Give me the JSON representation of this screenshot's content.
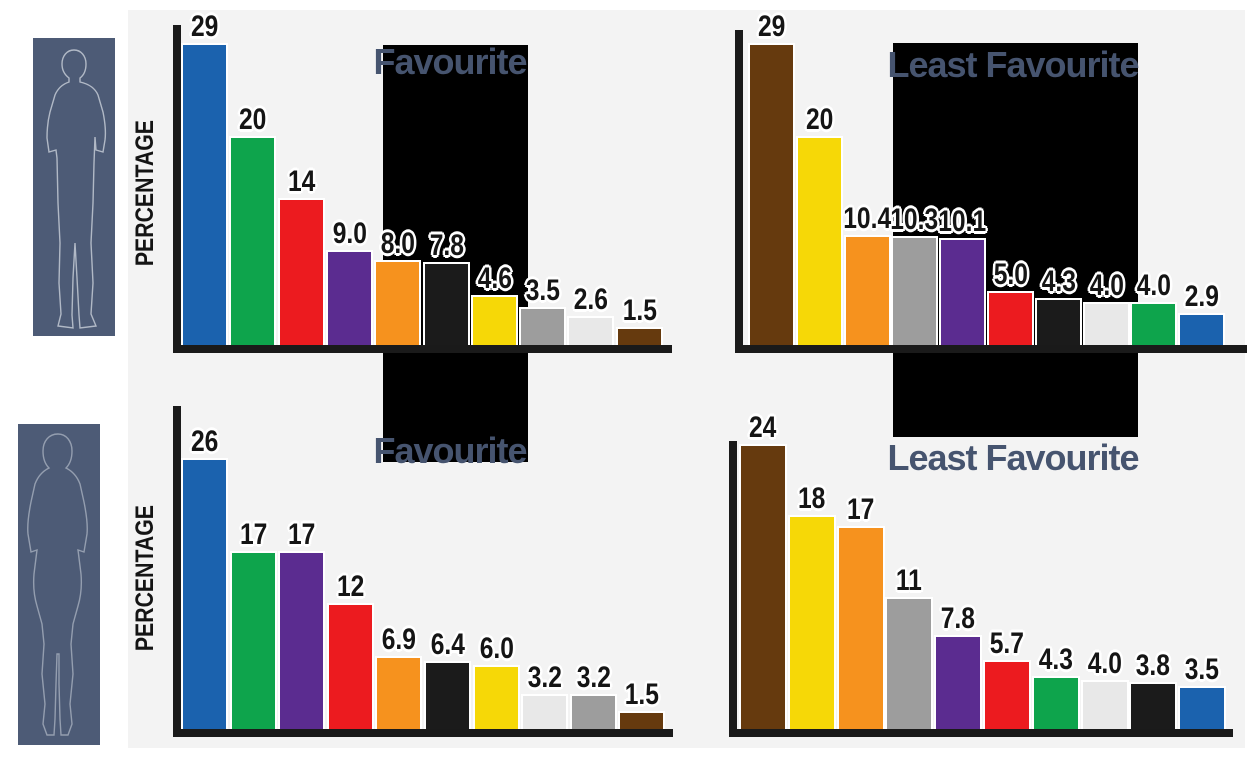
{
  "page": {
    "background_color": "#ffffff",
    "panel_color": "#f3f3f3",
    "overlay_color": "#000000",
    "title_color": "#46546f",
    "silhouette_color": "#4d5b76",
    "axis_color": "#1a1a1a"
  },
  "figures": {
    "top": "man-silhouette",
    "bottom": "woman-silhouette"
  },
  "color_palette": {
    "blue": "#1b62ae",
    "green": "#0ea44c",
    "red": "#ec1b1f",
    "purple": "#5b2c90",
    "orange": "#f6921e",
    "black": "#1b1b1b",
    "yellow": "#f6d807",
    "grey": "#9d9d9d",
    "white": "#e8e8e8",
    "brown": "#663a0e"
  },
  "chart_data": [
    {
      "type": "bar",
      "group": "men",
      "title": "Favourite",
      "ylabel": "PERCENTAGE",
      "ylim": [
        0,
        30
      ],
      "grid": false,
      "legend": "none",
      "categories": [
        "blue",
        "green",
        "red",
        "purple",
        "orange",
        "black",
        "yellow",
        "grey",
        "white",
        "brown"
      ],
      "values": [
        29,
        20,
        14,
        9.0,
        8.0,
        7.8,
        4.6,
        3.5,
        2.6,
        1.5
      ],
      "labels": [
        "29",
        "20",
        "14",
        "9.0",
        "8.0",
        "7.8",
        "4.6",
        "3.5",
        "2.6",
        "1.5"
      ],
      "bar_colors": [
        "#1b62ae",
        "#0ea44c",
        "#ec1b1f",
        "#5b2c90",
        "#f6921e",
        "#1b1b1b",
        "#f6d807",
        "#9d9d9d",
        "#e8e8e8",
        "#663a0e"
      ]
    },
    {
      "type": "bar",
      "group": "men",
      "title": "Least Favourite",
      "ylabel": "",
      "ylim": [
        0,
        30
      ],
      "grid": false,
      "legend": "none",
      "categories": [
        "brown",
        "yellow",
        "orange",
        "grey",
        "purple",
        "red",
        "black",
        "white",
        "green",
        "blue"
      ],
      "values": [
        29,
        20,
        10.4,
        10.3,
        10.1,
        5.0,
        4.3,
        4.0,
        4.0,
        2.9
      ],
      "labels": [
        "29",
        "20",
        "10.4",
        "10.3",
        "10.1",
        "5.0",
        "4.3",
        "4.0",
        "4.0",
        "2.9"
      ],
      "bar_colors": [
        "#663a0e",
        "#f6d807",
        "#f6921e",
        "#9d9d9d",
        "#5b2c90",
        "#ec1b1f",
        "#1b1b1b",
        "#e8e8e8",
        "#0ea44c",
        "#1b62ae"
      ]
    },
    {
      "type": "bar",
      "group": "women",
      "title": "Favourite",
      "ylabel": "PERCENTAGE",
      "ylim": [
        0,
        30
      ],
      "grid": false,
      "legend": "none",
      "categories": [
        "blue",
        "green",
        "purple",
        "red",
        "orange",
        "black",
        "yellow",
        "white",
        "grey",
        "brown"
      ],
      "values": [
        26,
        17,
        17,
        12,
        6.9,
        6.4,
        6.0,
        3.2,
        3.2,
        1.5
      ],
      "labels": [
        "26",
        "17",
        "17",
        "12",
        "6.9",
        "6.4",
        "6.0",
        "3.2",
        "3.2",
        "1.5"
      ],
      "bar_colors": [
        "#1b62ae",
        "#0ea44c",
        "#5b2c90",
        "#ec1b1f",
        "#f6921e",
        "#1b1b1b",
        "#f6d807",
        "#e8e8e8",
        "#9d9d9d",
        "#663a0e"
      ]
    },
    {
      "type": "bar",
      "group": "women",
      "title": "Least Favourite",
      "ylabel": "",
      "ylim": [
        0,
        30
      ],
      "grid": false,
      "legend": "none",
      "categories": [
        "brown",
        "yellow",
        "orange",
        "grey",
        "purple",
        "red",
        "green",
        "white",
        "black",
        "blue"
      ],
      "values": [
        24,
        18,
        17,
        11,
        7.8,
        5.7,
        4.3,
        4.0,
        3.8,
        3.5
      ],
      "labels": [
        "24",
        "18",
        "17",
        "11",
        "7.8",
        "5.7",
        "4.3",
        "4.0",
        "3.8",
        "3.5"
      ],
      "bar_colors": [
        "#663a0e",
        "#f6d807",
        "#f6921e",
        "#9d9d9d",
        "#5b2c90",
        "#ec1b1f",
        "#0ea44c",
        "#e8e8e8",
        "#1b1b1b",
        "#1b62ae"
      ]
    }
  ]
}
